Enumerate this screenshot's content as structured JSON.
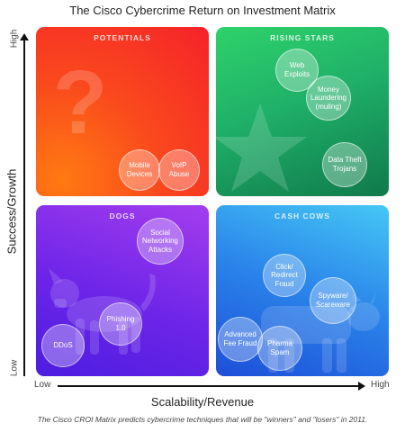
{
  "title": "The Cisco Cybercrime Return on Investment Matrix",
  "axes": {
    "y_label": "Success/Growth",
    "y_high": "High",
    "y_low": "Low",
    "x_label": "Scalability/Revenue",
    "x_low": "Low",
    "x_high": "High"
  },
  "quadrants": {
    "potentials": {
      "title": "POTENTIALS",
      "color": "#f5222a",
      "icon": "question-mark-icon",
      "items": [
        "Mobile Devices",
        "VoIP Abuse"
      ]
    },
    "rising_stars": {
      "title": "RISING STARS",
      "color": "#1fb069",
      "icon": "star-icon",
      "items": [
        "Web Exploits",
        "Money Laundering (muling)",
        "Data Theft Trojans"
      ]
    },
    "dogs": {
      "title": "DOGS",
      "color": "#6d25e8",
      "icon": "dog-icon",
      "items": [
        "Social Networking Attacks",
        "Phishing 1.0",
        "DDoS"
      ]
    },
    "cash_cows": {
      "title": "CASH COWS",
      "color": "#2a83ea",
      "icon": "cow-icon",
      "items": [
        "Click/ Redirect Fraud",
        "Spyware/ Scareware",
        "Advanced Fee Fraud",
        "Pharma Spam"
      ]
    }
  },
  "caption": "The Cisco CROI Matrix predicts cybercrime techniques that will be \"winners\" and \"losers\" in 2011."
}
